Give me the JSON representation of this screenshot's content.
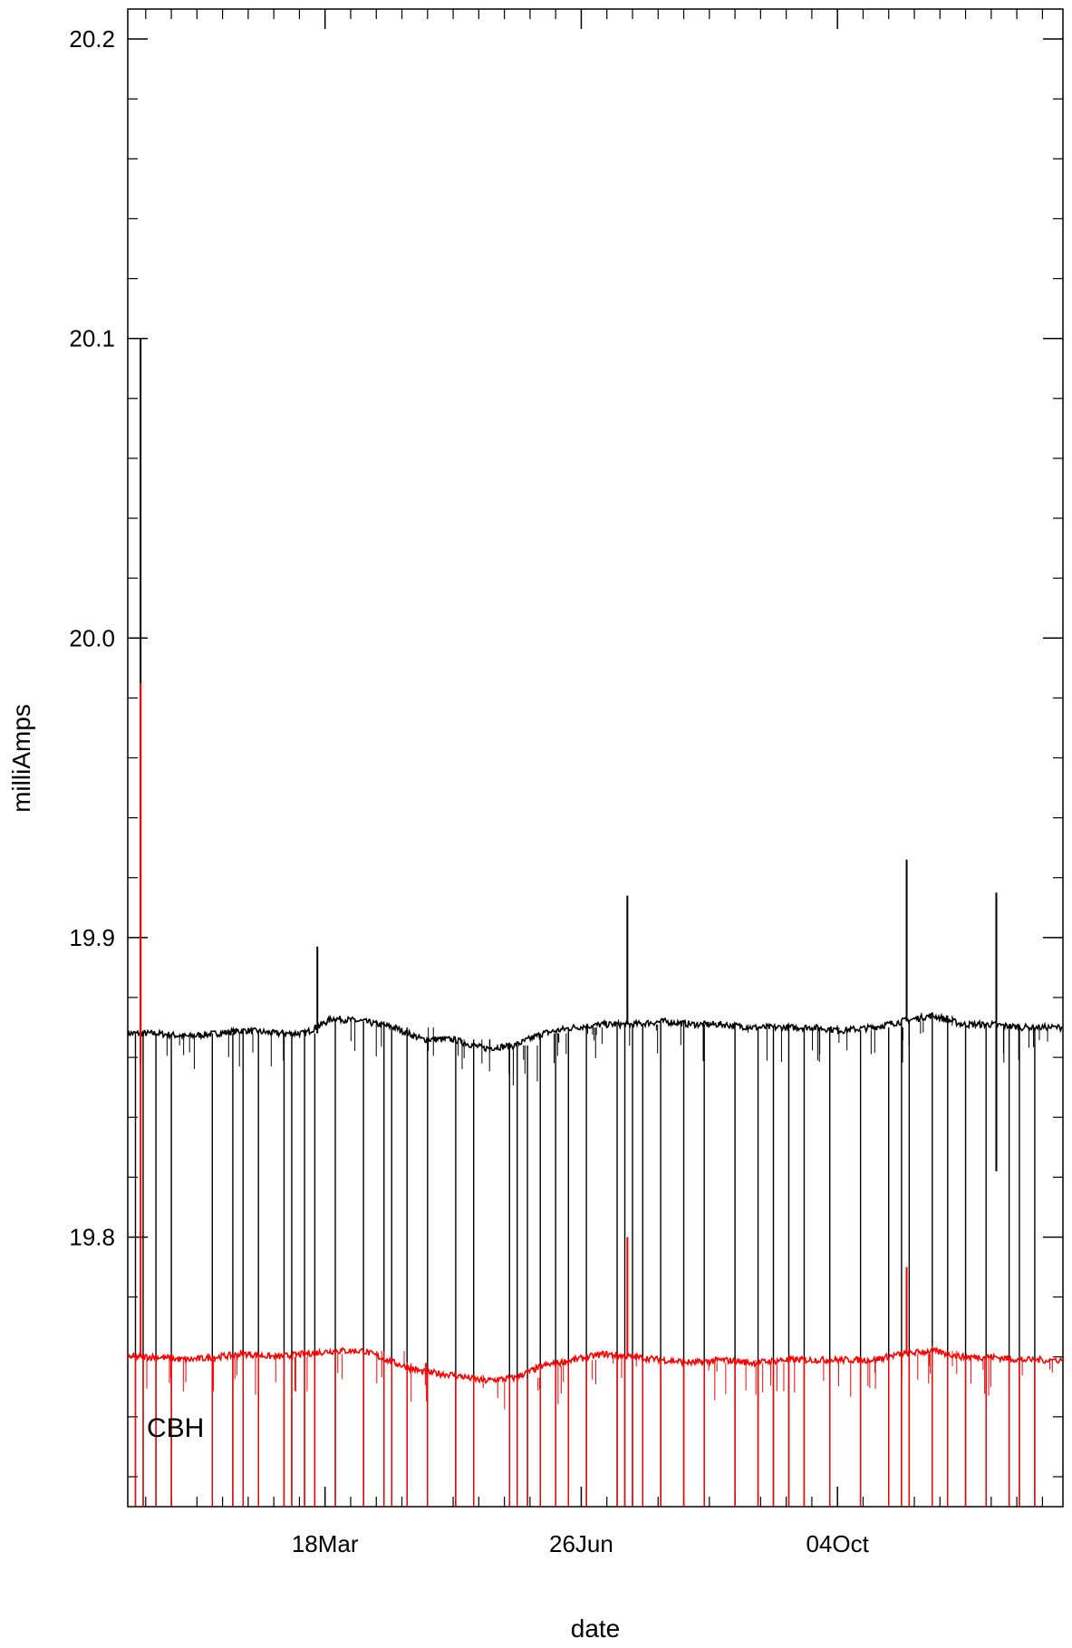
{
  "chart_data": {
    "type": "line",
    "xlabel": "date",
    "ylabel": "milliAmps",
    "annotation": "CBH",
    "ylim": [
      19.71,
      20.21
    ],
    "xlim": [
      "2000-01-01",
      "2000-12-31"
    ],
    "grid": false,
    "y_major_ticks": [
      19.8,
      19.9,
      20.0,
      20.1,
      20.2
    ],
    "y_tick_labels": [
      "19.8",
      "19.9",
      "20.0",
      "20.1",
      "20.2"
    ],
    "x_major_ticks": [
      "2000-03-18",
      "2000-06-26",
      "2000-10-04"
    ],
    "x_tick_labels": [
      "18Mar",
      "26Jun",
      "04Oct"
    ],
    "series": [
      {
        "color": "#000000",
        "x": [
          "2000-01-01",
          "2000-01-12",
          "2000-01-24",
          "2000-02-05",
          "2000-02-16",
          "2000-02-28",
          "2000-03-10",
          "2000-03-21",
          "2000-04-02",
          "2000-04-14",
          "2000-04-25",
          "2000-05-07",
          "2000-05-19",
          "2000-05-31",
          "2000-06-11",
          "2000-06-23",
          "2000-07-05",
          "2000-07-16",
          "2000-07-28",
          "2000-08-09",
          "2000-08-20",
          "2000-09-01",
          "2000-09-13",
          "2000-09-24",
          "2000-10-06",
          "2000-10-18",
          "2000-10-29",
          "2000-11-10",
          "2000-11-22",
          "2000-12-03",
          "2000-12-15",
          "2000-12-31"
        ],
        "y": [
          19.868,
          19.868,
          19.867,
          19.868,
          19.869,
          19.868,
          19.868,
          19.873,
          19.872,
          19.87,
          19.866,
          19.866,
          19.863,
          19.864,
          19.868,
          19.87,
          19.871,
          19.871,
          19.872,
          19.871,
          19.871,
          19.87,
          19.87,
          19.87,
          19.869,
          19.87,
          19.872,
          19.874,
          19.871,
          19.871,
          19.87,
          19.87
        ],
        "spikes_up": [
          [
            "2000-01-06",
            20.1
          ],
          [
            "2000-03-15",
            19.897
          ],
          [
            "2000-07-14",
            19.914
          ],
          [
            "2000-10-31",
            19.926
          ],
          [
            "2000-12-05",
            19.915
          ]
        ],
        "drops_down": [
          [
            "2000-01-06",
            19.858
          ],
          [
            "2000-12-05",
            19.822
          ]
        ]
      },
      {
        "color": "#ff0000",
        "x": [
          "2000-01-01",
          "2000-01-12",
          "2000-01-24",
          "2000-02-05",
          "2000-02-16",
          "2000-02-28",
          "2000-03-10",
          "2000-03-21",
          "2000-04-02",
          "2000-04-14",
          "2000-04-25",
          "2000-05-07",
          "2000-05-19",
          "2000-05-31",
          "2000-06-11",
          "2000-06-23",
          "2000-07-05",
          "2000-07-16",
          "2000-07-28",
          "2000-08-09",
          "2000-08-20",
          "2000-09-01",
          "2000-09-13",
          "2000-09-24",
          "2000-10-06",
          "2000-10-18",
          "2000-10-29",
          "2000-11-10",
          "2000-11-22",
          "2000-12-03",
          "2000-12-15",
          "2000-12-31"
        ],
        "y": [
          19.76,
          19.76,
          19.759,
          19.76,
          19.761,
          19.76,
          19.761,
          19.762,
          19.762,
          19.758,
          19.755,
          19.754,
          19.752,
          19.753,
          19.757,
          19.759,
          19.761,
          19.76,
          19.759,
          19.758,
          19.759,
          19.758,
          19.759,
          19.759,
          19.759,
          19.759,
          19.761,
          19.762,
          19.76,
          19.76,
          19.759,
          19.759
        ],
        "spikes_up": [
          [
            "2000-01-06",
            19.985
          ],
          [
            "2000-07-14",
            19.8
          ],
          [
            "2000-10-31",
            19.79
          ]
        ],
        "drops_down": []
      }
    ],
    "dropout_dates": [
      "2000-01-04",
      "2000-01-07",
      "2000-01-12",
      "2000-01-18",
      "2000-02-03",
      "2000-02-11",
      "2000-02-15",
      "2000-02-21",
      "2000-03-02",
      "2000-03-05",
      "2000-03-10",
      "2000-03-14",
      "2000-03-22",
      "2000-04-02",
      "2000-04-10",
      "2000-04-13",
      "2000-04-19",
      "2000-04-27",
      "2000-05-08",
      "2000-05-15",
      "2000-05-29",
      "2000-06-01",
      "2000-06-05",
      "2000-06-10",
      "2000-06-16",
      "2000-06-21",
      "2000-06-28",
      "2000-07-10",
      "2000-07-13",
      "2000-07-16",
      "2000-07-20",
      "2000-07-27",
      "2000-08-05",
      "2000-08-13",
      "2000-08-25",
      "2000-09-03",
      "2000-09-09",
      "2000-09-15",
      "2000-09-21",
      "2000-10-01",
      "2000-10-13",
      "2000-10-24",
      "2000-10-29",
      "2000-11-01",
      "2000-11-10",
      "2000-11-16",
      "2000-11-23",
      "2000-12-01",
      "2000-12-10",
      "2000-12-14",
      "2000-12-20"
    ]
  }
}
